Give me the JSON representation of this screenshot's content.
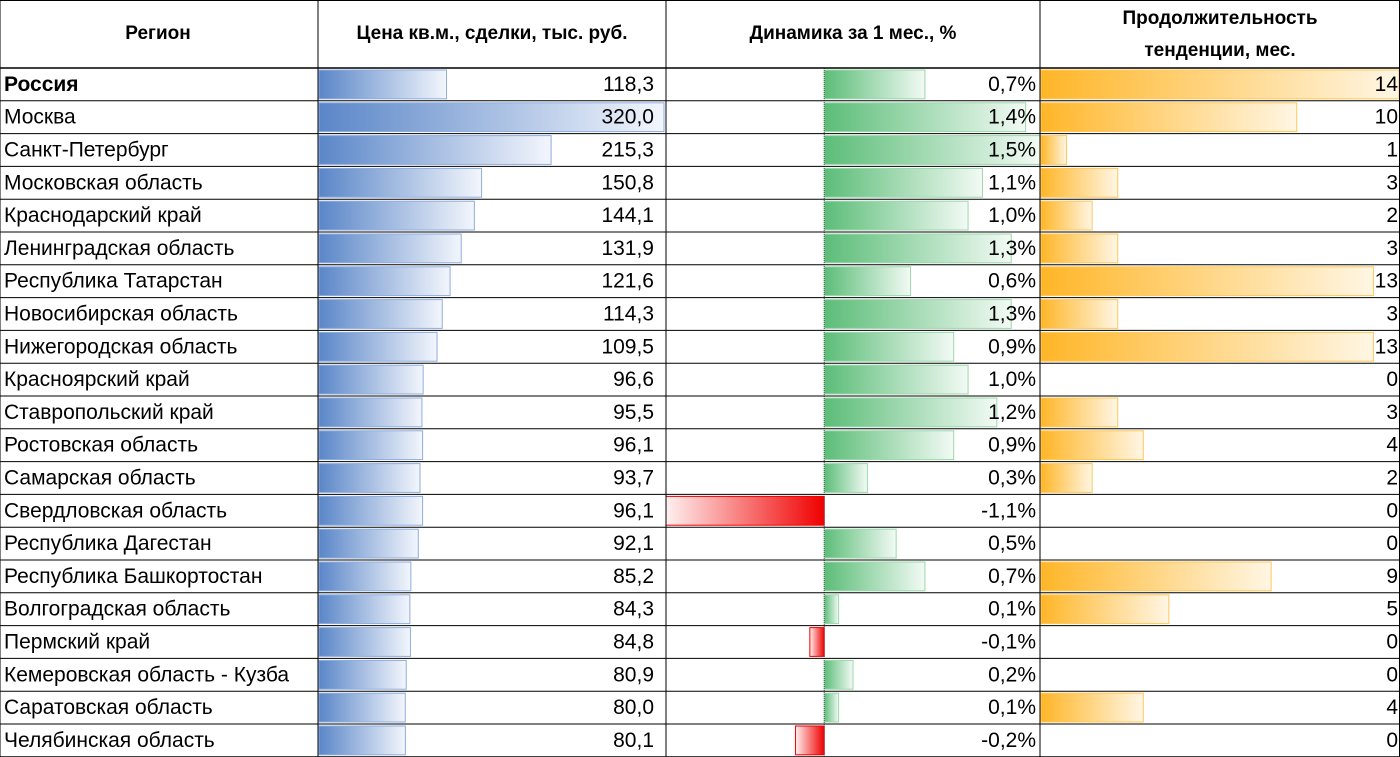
{
  "table": {
    "columns": [
      "Регион",
      "Цена кв.м., сделки, тыс. руб.",
      "Динамика за 1 мес., %",
      "Продолжительность",
      "тенденции, мес."
    ],
    "rows": [
      {
        "region": "Россия",
        "price": {
          "value": 118.3,
          "label": "118,3"
        },
        "change": {
          "value": 0.7,
          "label": "0,7%"
        },
        "duration": 14
      },
      {
        "region": "Москва",
        "price": {
          "value": 320.0,
          "label": "320,0"
        },
        "change": {
          "value": 1.4,
          "label": "1,4%"
        },
        "duration": 10
      },
      {
        "region": "Санкт-Петербург",
        "price": {
          "value": 215.3,
          "label": "215,3"
        },
        "change": {
          "value": 1.5,
          "label": "1,5%"
        },
        "duration": 1
      },
      {
        "region": "Московская область",
        "price": {
          "value": 150.8,
          "label": "150,8"
        },
        "change": {
          "value": 1.1,
          "label": "1,1%"
        },
        "duration": 3
      },
      {
        "region": "Краснодарский край",
        "price": {
          "value": 144.1,
          "label": "144,1"
        },
        "change": {
          "value": 1.0,
          "label": "1,0%"
        },
        "duration": 2
      },
      {
        "region": "Ленинградская область",
        "price": {
          "value": 131.9,
          "label": "131,9"
        },
        "change": {
          "value": 1.3,
          "label": "1,3%"
        },
        "duration": 3
      },
      {
        "region": "Республика Татарстан",
        "price": {
          "value": 121.6,
          "label": "121,6"
        },
        "change": {
          "value": 0.6,
          "label": "0,6%"
        },
        "duration": 13
      },
      {
        "region": "Новосибирская область",
        "price": {
          "value": 114.3,
          "label": "114,3"
        },
        "change": {
          "value": 1.3,
          "label": "1,3%"
        },
        "duration": 3
      },
      {
        "region": "Нижегородская область",
        "price": {
          "value": 109.5,
          "label": "109,5"
        },
        "change": {
          "value": 0.9,
          "label": "0,9%"
        },
        "duration": 13
      },
      {
        "region": "Красноярский край",
        "price": {
          "value": 96.6,
          "label": "96,6"
        },
        "change": {
          "value": 1.0,
          "label": "1,0%"
        },
        "duration": 0
      },
      {
        "region": "Ставропольский край",
        "price": {
          "value": 95.5,
          "label": "95,5"
        },
        "change": {
          "value": 1.2,
          "label": "1,2%"
        },
        "duration": 3
      },
      {
        "region": "Ростовская область",
        "price": {
          "value": 96.1,
          "label": "96,1"
        },
        "change": {
          "value": 0.9,
          "label": "0,9%"
        },
        "duration": 4
      },
      {
        "region": "Самарская область",
        "price": {
          "value": 93.7,
          "label": "93,7"
        },
        "change": {
          "value": 0.3,
          "label": "0,3%"
        },
        "duration": 2
      },
      {
        "region": "Свердловская область",
        "price": {
          "value": 96.1,
          "label": "96,1"
        },
        "change": {
          "value": -1.1,
          "label": "-1,1%"
        },
        "duration": 0
      },
      {
        "region": "Республика Дагестан",
        "price": {
          "value": 92.1,
          "label": "92,1"
        },
        "change": {
          "value": 0.5,
          "label": "0,5%"
        },
        "duration": 0
      },
      {
        "region": "Республика Башкортостан",
        "price": {
          "value": 85.2,
          "label": "85,2"
        },
        "change": {
          "value": 0.7,
          "label": "0,7%"
        },
        "duration": 9
      },
      {
        "region": "Волгоградская область",
        "price": {
          "value": 84.3,
          "label": "84,3"
        },
        "change": {
          "value": 0.1,
          "label": "0,1%"
        },
        "duration": 5
      },
      {
        "region": "Пермский край",
        "price": {
          "value": 84.8,
          "label": "84,8"
        },
        "change": {
          "value": -0.1,
          "label": "-0,1%"
        },
        "duration": 0
      },
      {
        "region": "Кемеровская область - Кузба",
        "price": {
          "value": 80.9,
          "label": "80,9"
        },
        "change": {
          "value": 0.2,
          "label": "0,2%"
        },
        "duration": 0
      },
      {
        "region": "Саратовская область",
        "price": {
          "value": 80.0,
          "label": "80,0"
        },
        "change": {
          "value": 0.1,
          "label": "0,1%"
        },
        "duration": 4
      },
      {
        "region": "Челябинская область",
        "price": {
          "value": 80.1,
          "label": "80,1"
        },
        "change": {
          "value": -0.2,
          "label": "-0,2%"
        },
        "duration": 0
      }
    ]
  }
}
